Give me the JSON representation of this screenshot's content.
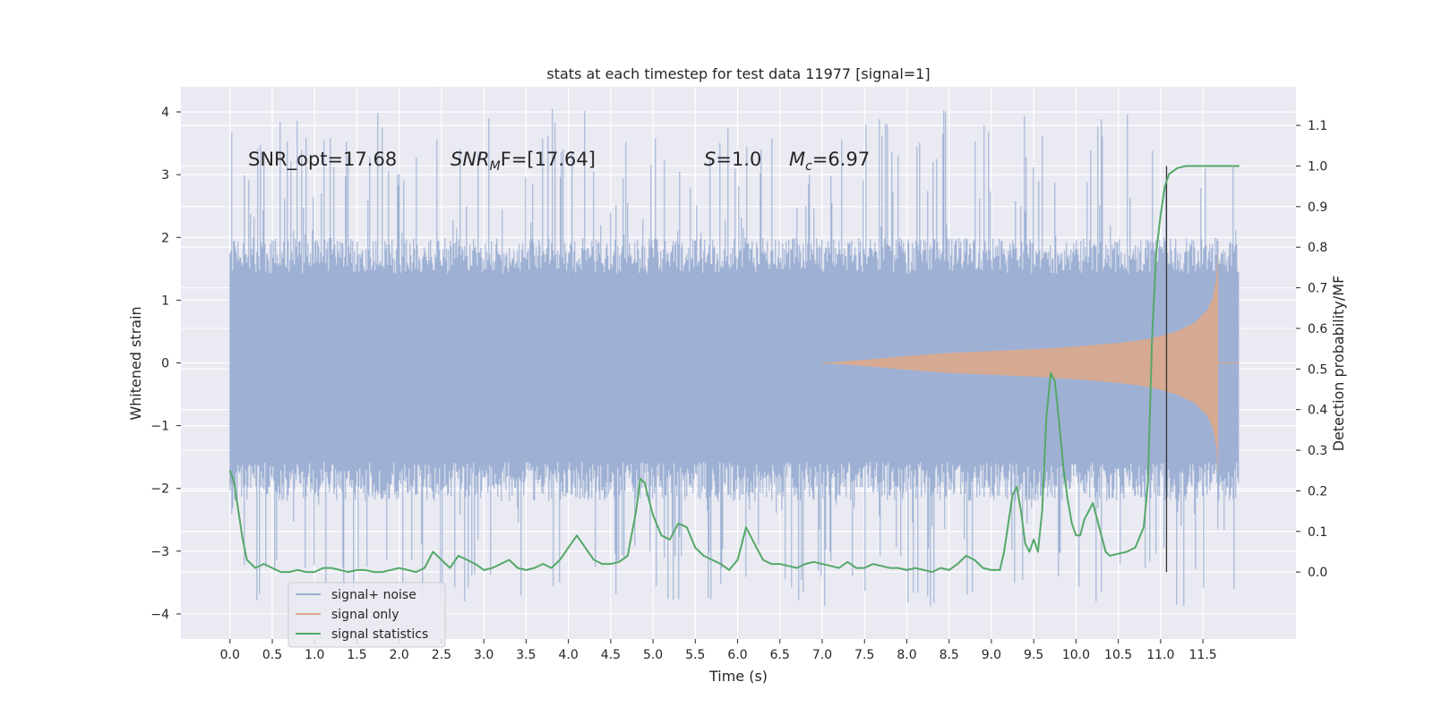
{
  "chart_data": {
    "type": "line",
    "title": "stats at each timestep for test data 11977 [signal=1]",
    "xlabel": "Time (s)",
    "ylabel": "Whitened strain",
    "y2label": "Detection probability/MF",
    "xlim": [
      -0.58,
      12.6
    ],
    "ylim": [
      -4.4,
      4.4
    ],
    "y2lim": [
      -0.165,
      1.195
    ],
    "x_ticks": [
      "0.0",
      "0.5",
      "1.0",
      "1.5",
      "2.0",
      "2.5",
      "3.0",
      "3.5",
      "4.0",
      "4.5",
      "5.0",
      "5.5",
      "6.0",
      "6.5",
      "7.0",
      "7.5",
      "8.0",
      "8.5",
      "9.0",
      "9.5",
      "10.0",
      "10.5",
      "11.0",
      "11.5"
    ],
    "y_ticks": [
      "4",
      "3",
      "2",
      "1",
      "0",
      "−1",
      "−2",
      "−3",
      "−4"
    ],
    "y2_ticks": [
      "1.1",
      "1.0",
      "0.9",
      "0.8",
      "0.7",
      "0.6",
      "0.5",
      "0.4",
      "0.3",
      "0.2",
      "0.1",
      "0.0"
    ],
    "annotations": {
      "snr_opt": "SNR_opt=17.68",
      "snr_mf_name": "SNR",
      "snr_mf_sub": "M",
      "snr_mf_value": "F=[17.64]",
      "s_name": "S",
      "s_value": "=1.0",
      "mc_name": "M",
      "mc_sub": "c",
      "mc_value": "=6.97"
    },
    "trigger_time": 11.07,
    "series": [
      {
        "name": "signal+ noise",
        "color": "#9aaed2",
        "envelope": {
          "t_start": 0.0,
          "t_end": 11.93,
          "typical_upper": 1.9,
          "typical_lower": -2.1,
          "peak_upper": 4.1,
          "peak_lower": -3.9
        }
      },
      {
        "name": "signal only",
        "color": "#dca88c",
        "envelope": {
          "x": [
            7.0,
            7.5,
            8.0,
            8.5,
            9.0,
            9.5,
            10.0,
            10.5,
            10.8,
            11.0,
            11.2,
            11.4,
            11.55,
            11.62,
            11.66,
            11.68
          ],
          "amplitude": [
            0.0,
            0.05,
            0.11,
            0.16,
            0.19,
            0.22,
            0.26,
            0.32,
            0.37,
            0.43,
            0.51,
            0.64,
            0.84,
            1.05,
            1.35,
            1.8
          ],
          "x_end": 11.68
        }
      },
      {
        "name": "signal statistics",
        "color": "#55a868",
        "x": [
          0.0,
          0.05,
          0.1,
          0.15,
          0.2,
          0.3,
          0.4,
          0.5,
          0.6,
          0.7,
          0.8,
          0.9,
          1.0,
          1.1,
          1.2,
          1.3,
          1.4,
          1.5,
          1.6,
          1.7,
          1.8,
          1.9,
          2.0,
          2.1,
          2.2,
          2.3,
          2.4,
          2.5,
          2.6,
          2.7,
          2.8,
          2.9,
          3.0,
          3.1,
          3.2,
          3.3,
          3.4,
          3.5,
          3.6,
          3.7,
          3.8,
          3.9,
          4.0,
          4.1,
          4.2,
          4.3,
          4.4,
          4.5,
          4.6,
          4.7,
          4.8,
          4.85,
          4.9,
          4.95,
          5.0,
          5.1,
          5.2,
          5.3,
          5.4,
          5.5,
          5.6,
          5.7,
          5.8,
          5.9,
          6.0,
          6.1,
          6.2,
          6.3,
          6.4,
          6.5,
          6.6,
          6.7,
          6.8,
          6.9,
          7.0,
          7.1,
          7.2,
          7.3,
          7.4,
          7.5,
          7.6,
          7.7,
          7.8,
          7.9,
          8.0,
          8.1,
          8.2,
          8.3,
          8.4,
          8.5,
          8.6,
          8.7,
          8.8,
          8.9,
          9.0,
          9.1,
          9.15,
          9.2,
          9.25,
          9.3,
          9.35,
          9.4,
          9.45,
          9.5,
          9.55,
          9.6,
          9.65,
          9.7,
          9.75,
          9.8,
          9.85,
          9.9,
          9.95,
          10.0,
          10.05,
          10.1,
          10.15,
          10.2,
          10.25,
          10.3,
          10.35,
          10.4,
          10.5,
          10.6,
          10.7,
          10.8,
          10.85,
          10.9,
          10.95,
          11.0,
          11.05,
          11.1,
          11.2,
          11.3,
          11.4,
          11.5,
          11.6,
          11.7,
          11.8,
          11.9,
          11.93
        ],
        "values": [
          0.25,
          0.22,
          0.15,
          0.08,
          0.03,
          0.01,
          0.02,
          0.01,
          0.0,
          0.0,
          0.005,
          0.0,
          0.0,
          0.01,
          0.01,
          0.005,
          0.0,
          0.005,
          0.005,
          0.0,
          0.0,
          0.005,
          0.01,
          0.005,
          0.0,
          0.01,
          0.05,
          0.03,
          0.01,
          0.04,
          0.03,
          0.02,
          0.005,
          0.01,
          0.02,
          0.03,
          0.01,
          0.005,
          0.01,
          0.02,
          0.01,
          0.03,
          0.06,
          0.09,
          0.06,
          0.03,
          0.02,
          0.02,
          0.025,
          0.04,
          0.15,
          0.23,
          0.22,
          0.18,
          0.14,
          0.09,
          0.08,
          0.12,
          0.11,
          0.06,
          0.04,
          0.03,
          0.02,
          0.005,
          0.03,
          0.11,
          0.07,
          0.03,
          0.02,
          0.02,
          0.015,
          0.01,
          0.02,
          0.025,
          0.02,
          0.015,
          0.01,
          0.025,
          0.01,
          0.01,
          0.02,
          0.015,
          0.01,
          0.01,
          0.005,
          0.01,
          0.005,
          0.0,
          0.01,
          0.005,
          0.02,
          0.04,
          0.03,
          0.01,
          0.005,
          0.005,
          0.05,
          0.12,
          0.19,
          0.21,
          0.15,
          0.07,
          0.05,
          0.08,
          0.05,
          0.15,
          0.38,
          0.49,
          0.47,
          0.37,
          0.26,
          0.18,
          0.12,
          0.09,
          0.09,
          0.13,
          0.15,
          0.17,
          0.13,
          0.09,
          0.05,
          0.04,
          0.045,
          0.05,
          0.06,
          0.11,
          0.22,
          0.58,
          0.79,
          0.88,
          0.95,
          0.98,
          0.995,
          1.0,
          1.0,
          1.0,
          1.0,
          1.0,
          1.0,
          1.0,
          1.0
        ]
      }
    ],
    "grid": true,
    "legend_position": "lower-left"
  }
}
